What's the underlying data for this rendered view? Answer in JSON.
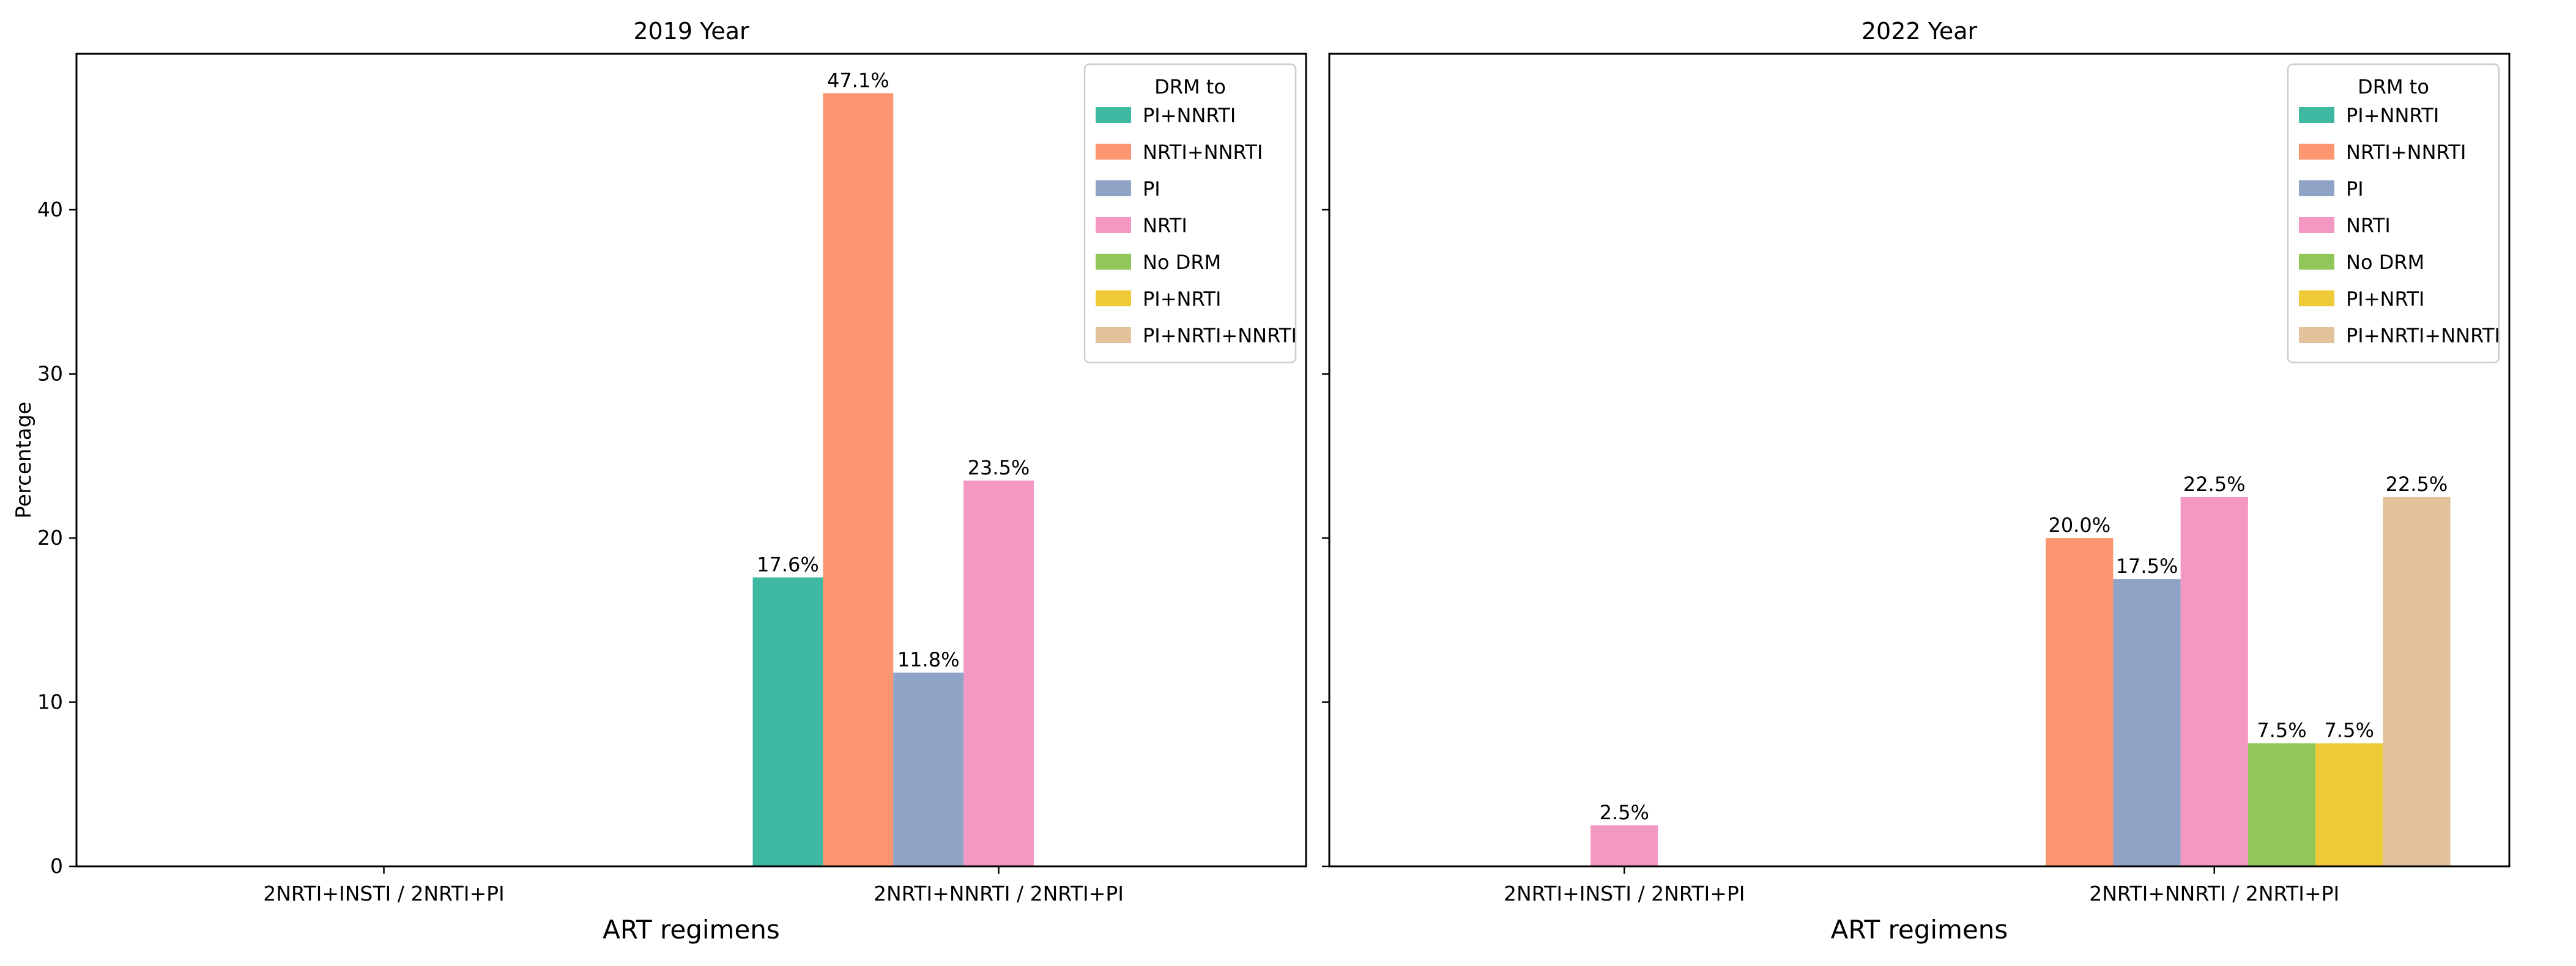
{
  "chart_data": [
    {
      "type": "bar",
      "title": "2019 Year",
      "xlabel": "ART regimens",
      "ylabel": "Percentage",
      "ylim": [
        0,
        49.5
      ],
      "yticks": [
        0,
        10,
        20,
        30,
        40
      ],
      "categories": [
        "2NRTI+INSTI / 2NRTI+PI",
        "2NRTI+NNRTI / 2NRTI+PI"
      ],
      "legend_title": "DRM to",
      "legend_position": "top-right",
      "series": [
        {
          "name": "PI+NNRTI",
          "color": "#3fb8a1",
          "values": [
            0,
            17.6
          ],
          "labels": [
            "",
            "17.6%"
          ]
        },
        {
          "name": "NRTI+NNRTI",
          "color": "#fc9570",
          "values": [
            0,
            47.1
          ],
          "labels": [
            "",
            "47.1%"
          ]
        },
        {
          "name": "PI",
          "color": "#8fa3c6",
          "values": [
            0,
            11.8
          ],
          "labels": [
            "",
            "11.8%"
          ]
        },
        {
          "name": "NRTI",
          "color": "#f298c3",
          "values": [
            0,
            23.5
          ],
          "labels": [
            "",
            "23.5%"
          ]
        },
        {
          "name": "No DRM",
          "color": "#91c758",
          "values": [
            0,
            0
          ],
          "labels": [
            "",
            ""
          ]
        },
        {
          "name": "PI+NRTI",
          "color": "#efcb3a",
          "values": [
            0,
            0
          ],
          "labels": [
            "",
            ""
          ]
        },
        {
          "name": "PI+NRTI+NNRTI",
          "color": "#e3c29b",
          "values": [
            0,
            0
          ],
          "labels": [
            "",
            ""
          ]
        }
      ]
    },
    {
      "type": "bar",
      "title": "2022 Year",
      "xlabel": "ART regimens",
      "ylabel": "",
      "ylim": [
        0,
        49.5
      ],
      "yticks": [
        0,
        10,
        20,
        30,
        40
      ],
      "categories": [
        "2NRTI+INSTI / 2NRTI+PI",
        "2NRTI+NNRTI / 2NRTI+PI"
      ],
      "legend_title": "DRM to",
      "legend_position": "top-right",
      "series": [
        {
          "name": "PI+NNRTI",
          "color": "#3fb8a1",
          "values": [
            0,
            0
          ],
          "labels": [
            "",
            ""
          ]
        },
        {
          "name": "NRTI+NNRTI",
          "color": "#fc9570",
          "values": [
            0,
            20.0
          ],
          "labels": [
            "",
            "20.0%"
          ]
        },
        {
          "name": "PI",
          "color": "#8fa3c6",
          "values": [
            0,
            17.5
          ],
          "labels": [
            "",
            "17.5%"
          ]
        },
        {
          "name": "NRTI",
          "color": "#f298c3",
          "values": [
            2.5,
            22.5
          ],
          "labels": [
            "2.5%",
            "22.5%"
          ]
        },
        {
          "name": "No DRM",
          "color": "#91c758",
          "values": [
            0,
            7.5
          ],
          "labels": [
            "",
            "7.5%"
          ]
        },
        {
          "name": "PI+NRTI",
          "color": "#efcb3a",
          "values": [
            0,
            7.5
          ],
          "labels": [
            "",
            "7.5%"
          ]
        },
        {
          "name": "PI+NRTI+NNRTI",
          "color": "#e3c29b",
          "values": [
            0,
            22.5
          ],
          "labels": [
            "",
            "22.5%"
          ]
        }
      ]
    }
  ]
}
